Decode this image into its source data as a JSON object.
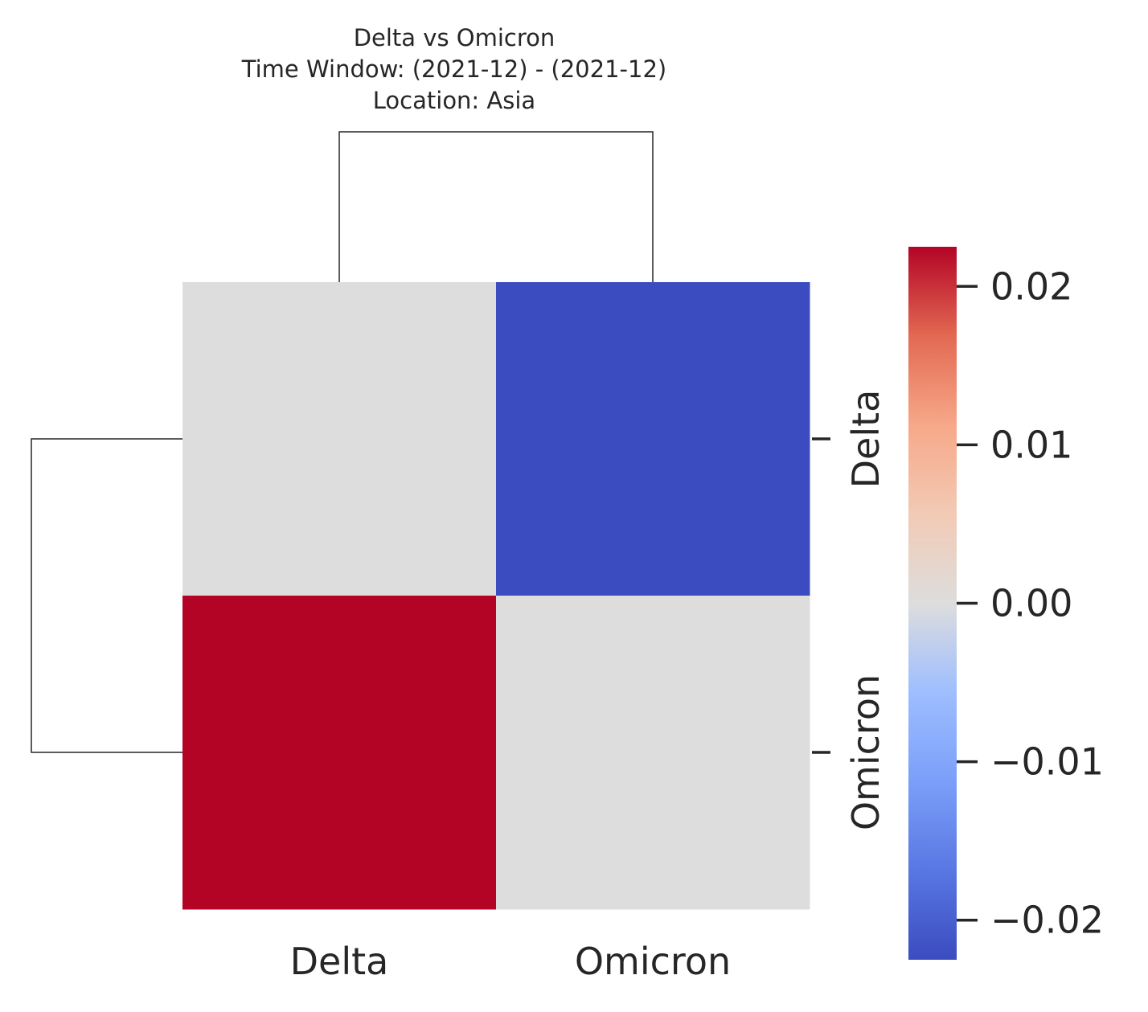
{
  "chart_data": {
    "type": "heatmap",
    "title_lines": [
      "Delta vs Omicron",
      "Time Window: (2021-12) - (2021-12)",
      "Location: Asia"
    ],
    "row_labels": [
      "Delta",
      "Omicron"
    ],
    "col_labels": [
      "Delta",
      "Omicron"
    ],
    "values": [
      [
        0.0,
        -0.0225
      ],
      [
        0.0225,
        0.0
      ]
    ],
    "colormap": "coolwarm",
    "vmin": -0.0225,
    "vmax": 0.0225,
    "colorbar": {
      "ticks": [
        0.02,
        0.01,
        0.0,
        -0.01,
        -0.02
      ],
      "tick_labels": [
        "0.02",
        "0.01",
        "0.00",
        "−0.01",
        "−0.02"
      ]
    },
    "dendrograms": [
      "rows",
      "columns"
    ],
    "colors": {
      "cell_low": "#3b4cc0",
      "cell_mid": "#dddddd",
      "cell_high": "#b40426",
      "dendrogram_line": "#262626"
    }
  }
}
